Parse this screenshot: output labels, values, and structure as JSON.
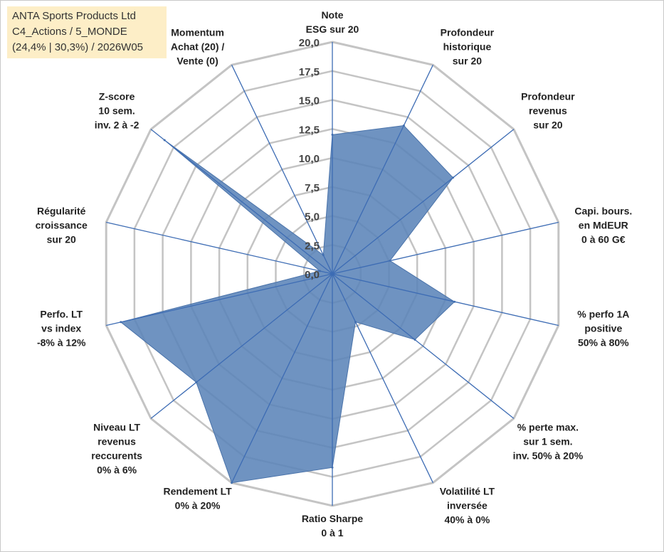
{
  "header": {
    "line1": "ANTA Sports Products Ltd",
    "line2": "C4_Actions / 5_MONDE",
    "line3": "(24,4% | 30,3%) / 2026W05"
  },
  "chart_data": {
    "type": "radar",
    "rmax": 20,
    "ticks": [
      "0,0",
      "2,5",
      "5,0",
      "7,5",
      "10,0",
      "12,5",
      "15,0",
      "17,5",
      "20,0"
    ],
    "tick_values": [
      0,
      2.5,
      5,
      7.5,
      10,
      12.5,
      15,
      17.5,
      20
    ],
    "axes": [
      {
        "label": [
          "Note",
          "ESG sur 20"
        ],
        "value": 12.0
      },
      {
        "label": [
          "Profondeur",
          "historique",
          "sur 20"
        ],
        "value": 14.2
      },
      {
        "label": [
          "Profondeur",
          "revenus",
          "sur 20"
        ],
        "value": 13.3
      },
      {
        "label": [
          "Capi. bours.",
          "en MdEUR",
          "0 à 60 G€"
        ],
        "value": 5.1
      },
      {
        "label": [
          "% perfo 1A",
          "positive",
          "50% à 80%"
        ],
        "value": 10.8
      },
      {
        "label": [
          "% perte max.",
          "sur 1 sem.",
          "inv. 50% à 20%"
        ],
        "value": 9.1
      },
      {
        "label": [
          "Volatilité LT",
          "inversée",
          "40% à 0%"
        ],
        "value": 4.6
      },
      {
        "label": [
          "Ratio Sharpe",
          "0 à 1"
        ],
        "value": 16.7
      },
      {
        "label": [
          "Rendement LT",
          "0% à 20%"
        ],
        "value": 20.0
      },
      {
        "label": [
          "Niveau LT",
          "revenus",
          "reccurents",
          "0% à 6%"
        ],
        "value": 15.0
      },
      {
        "label": [
          "Perfo. LT",
          "vs index",
          "-8% à 12%"
        ],
        "value": 18.7
      },
      {
        "label": [
          "Régularité",
          "croissance",
          "sur 20"
        ],
        "value": 1.1
      },
      {
        "label": [
          "Z-score",
          "10 sem.",
          "inv. 2 à -2"
        ],
        "value": 18.5
      },
      {
        "label": [
          "Momentum",
          "Achat (20) /",
          "Vente (0)"
        ],
        "value": 1.8
      }
    ],
    "colors": {
      "fill": "#5b84b8",
      "stroke": "#4a73aa",
      "spoke": "#3d6cb4",
      "grid": "#c4c4c4"
    }
  }
}
